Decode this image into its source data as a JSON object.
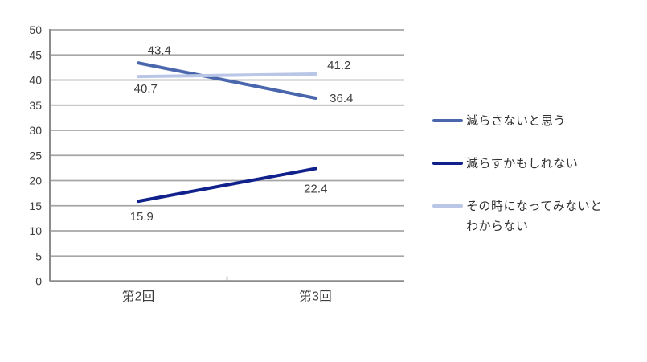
{
  "chart_data": {
    "type": "line",
    "title": "",
    "categories": [
      "第2回",
      "第3回"
    ],
    "series": [
      {
        "name": "減らさないと思う",
        "values": [
          43.4,
          36.4
        ],
        "color": "#4A66AC"
      },
      {
        "name": "減らすかもしれない",
        "values": [
          15.9,
          22.4
        ],
        "color": "#10218B"
      },
      {
        "name": "その時になってみないと\nわからない",
        "values": [
          40.7,
          41.2
        ],
        "color": "#B9C6E5"
      }
    ],
    "ylim": [
      0,
      50
    ],
    "ytick_step": 5,
    "ytick_labels": [
      "0",
      "5",
      "10",
      "15",
      "20",
      "25",
      "30",
      "35",
      "40",
      "45",
      "50"
    ],
    "grid": true,
    "legend_position": "right",
    "data_labels": true,
    "label_offsets": [
      [
        [
          26,
          -16
        ],
        [
          32,
          0
        ]
      ],
      [
        [
          4,
          19
        ],
        [
          0,
          25
        ]
      ],
      [
        [
          9,
          15
        ],
        [
          29,
          -11
        ]
      ]
    ],
    "colors": {
      "grid": "#A6A6A6",
      "axis": "#8C8C8C",
      "text": "#3D3D3D"
    }
  }
}
